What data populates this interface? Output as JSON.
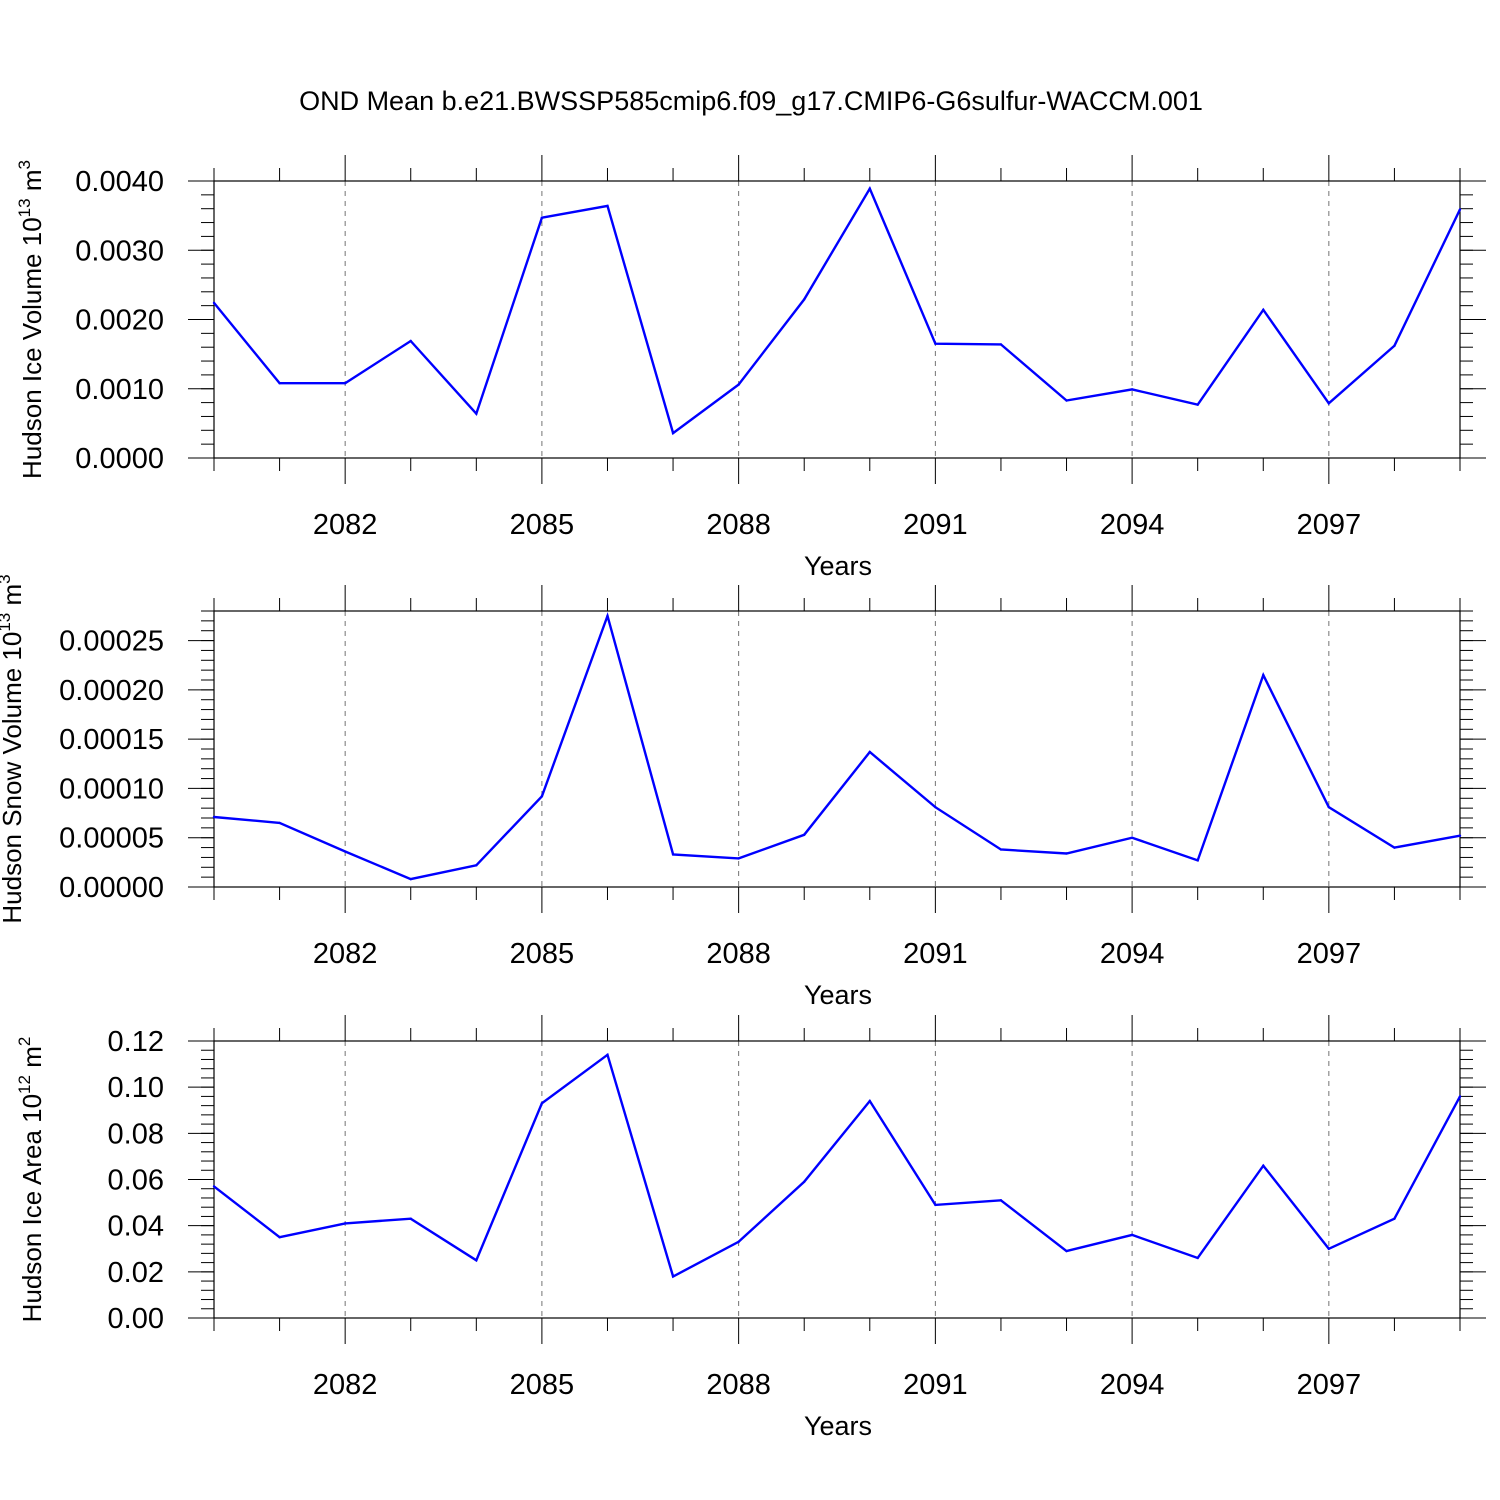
{
  "title": "OND Mean b.e21.BWSSP585cmip6.f09_g17.CMIP6-G6sulfur-WACCM.001",
  "colors": {
    "line": "#0000ff",
    "axis": "#000000",
    "grid": "#000000"
  },
  "chart_data": [
    {
      "type": "line",
      "ylabel_main": "Hudson Ice Volume 10",
      "ylabel_exp": "13",
      "ylabel_unit": " m",
      "ylabel_unit_exp": "3",
      "xlabel": "Years",
      "xlim": [
        2080,
        2099
      ],
      "ylim": [
        0,
        0.004
      ],
      "yticks": [
        0,
        0.001,
        0.002,
        0.003,
        0.004
      ],
      "ytick_labels": [
        "0.0000",
        "0.0010",
        "0.0020",
        "0.0030",
        "0.0040"
      ],
      "xticks": [
        2082,
        2085,
        2088,
        2091,
        2094,
        2097
      ],
      "xtick_labels": [
        "2082",
        "2085",
        "2088",
        "2091",
        "2094",
        "2097"
      ],
      "grid": "dashed vertical at labeled years",
      "x": [
        2080,
        2081,
        2082,
        2083,
        2084,
        2085,
        2086,
        2087,
        2088,
        2089,
        2090,
        2091,
        2092,
        2093,
        2094,
        2095,
        2096,
        2097,
        2098,
        2099
      ],
      "y": [
        0.00224,
        0.00108,
        0.00108,
        0.00169,
        0.00064,
        0.00347,
        0.00364,
        0.00036,
        0.00106,
        0.00229,
        0.00389,
        0.00165,
        0.00164,
        0.00083,
        0.00099,
        0.00077,
        0.00214,
        0.00079,
        0.00162,
        0.00359
      ]
    },
    {
      "type": "line",
      "ylabel_main": "Hudson Snow Volume 10",
      "ylabel_exp": "13",
      "ylabel_unit": " m",
      "ylabel_unit_exp": "3",
      "xlabel": "Years",
      "xlim": [
        2080,
        2099
      ],
      "ylim": [
        0,
        0.00028
      ],
      "yticks": [
        0,
        5e-05,
        0.0001,
        0.00015,
        0.0002,
        0.00025
      ],
      "ytick_labels": [
        "0.00000",
        "0.00005",
        "0.00010",
        "0.00015",
        "0.00020",
        "0.00025"
      ],
      "xticks": [
        2082,
        2085,
        2088,
        2091,
        2094,
        2097
      ],
      "xtick_labels": [
        "2082",
        "2085",
        "2088",
        "2091",
        "2094",
        "2097"
      ],
      "grid": "dashed vertical at labeled years",
      "x": [
        2080,
        2081,
        2082,
        2083,
        2084,
        2085,
        2086,
        2087,
        2088,
        2089,
        2090,
        2091,
        2092,
        2093,
        2094,
        2095,
        2096,
        2097,
        2098,
        2099
      ],
      "y": [
        7.1e-05,
        6.5e-05,
        3.6e-05,
        8e-06,
        2.2e-05,
        9.2e-05,
        0.000275,
        3.3e-05,
        2.9e-05,
        5.3e-05,
        0.000137,
        8.1e-05,
        3.8e-05,
        3.4e-05,
        5e-05,
        2.7e-05,
        0.000215,
        8.1e-05,
        4e-05,
        5.2e-05
      ]
    },
    {
      "type": "line",
      "ylabel_main": "Hudson Ice Area 10",
      "ylabel_exp": "12",
      "ylabel_unit": " m",
      "ylabel_unit_exp": "2",
      "xlabel": "Years",
      "xlim": [
        2080,
        2099
      ],
      "ylim": [
        0,
        0.12
      ],
      "yticks": [
        0,
        0.02,
        0.04,
        0.06,
        0.08,
        0.1,
        0.12
      ],
      "ytick_labels": [
        "0.00",
        "0.02",
        "0.04",
        "0.06",
        "0.08",
        "0.10",
        "0.12"
      ],
      "xticks": [
        2082,
        2085,
        2088,
        2091,
        2094,
        2097
      ],
      "xtick_labels": [
        "2082",
        "2085",
        "2088",
        "2091",
        "2094",
        "2097"
      ],
      "grid": "dashed vertical at labeled years",
      "x": [
        2080,
        2081,
        2082,
        2083,
        2084,
        2085,
        2086,
        2087,
        2088,
        2089,
        2090,
        2091,
        2092,
        2093,
        2094,
        2095,
        2096,
        2097,
        2098,
        2099
      ],
      "y": [
        0.057,
        0.035,
        0.041,
        0.043,
        0.025,
        0.093,
        0.114,
        0.018,
        0.033,
        0.059,
        0.094,
        0.049,
        0.051,
        0.029,
        0.036,
        0.026,
        0.066,
        0.03,
        0.043,
        0.096
      ]
    }
  ]
}
